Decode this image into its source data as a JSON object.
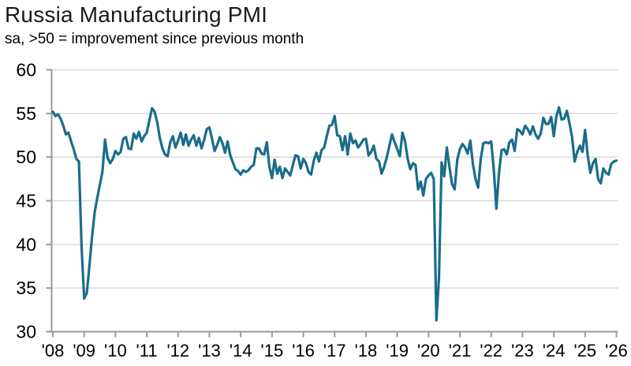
{
  "header": {
    "title": "Russia Manufacturing PMI",
    "subtitle": "sa, >50 = improvement since previous month"
  },
  "colors": {
    "line": "#1A6D8A",
    "grid": "#d9d9d9",
    "axis": "#999999",
    "tick_text": "#000000",
    "title_text": "#1a1a1a",
    "background": "#ffffff"
  },
  "chart_data": {
    "type": "line",
    "title": "Russia Manufacturing PMI",
    "subtitle": "sa, >50 = improvement since previous month",
    "xlabel": "",
    "ylabel": "",
    "ylim": [
      30,
      60
    ],
    "y_ticks": [
      30,
      35,
      40,
      45,
      50,
      55,
      60
    ],
    "x_tick_labels": [
      "'08",
      "'09",
      "'10",
      "'11",
      "'12",
      "'13",
      "'14",
      "'15",
      "'16",
      "'17",
      "'18",
      "'19",
      "'20",
      "'21",
      "'22",
      "'23",
      "'24",
      "'25",
      "'26"
    ],
    "frequency": "monthly",
    "period_start": "Jan 2008",
    "period_end": "Jan 2026",
    "grid": "horizontal-only",
    "legend": "none",
    "series": [
      {
        "name": "Russia Manufacturing PMI (sa)",
        "values": [
          55.2,
          54.7,
          54.9,
          54.4,
          53.6,
          52.6,
          52.8,
          51.8,
          50.9,
          49.8,
          49.5,
          39.8,
          33.8,
          34.4,
          37.5,
          40.8,
          43.6,
          45.3,
          46.8,
          48.3,
          52.0,
          49.9,
          49.3,
          49.8,
          50.7,
          50.3,
          50.6,
          52.1,
          52.3,
          51.0,
          50.9,
          52.7,
          52.1,
          52.9,
          51.8,
          52.4,
          52.8,
          54.2,
          55.6,
          55.2,
          54.0,
          52.2,
          51.0,
          50.3,
          50.1,
          51.7,
          52.4,
          51.1,
          51.9,
          52.8,
          51.4,
          52.6,
          51.3,
          52.0,
          52.5,
          51.3,
          52.2,
          51.0,
          52.0,
          53.2,
          53.4,
          52.1,
          50.7,
          51.4,
          52.3,
          51.6,
          50.5,
          51.8,
          50.2,
          49.4,
          48.6,
          48.4,
          48.0,
          48.5,
          48.3,
          48.5,
          48.9,
          49.1,
          51.0,
          51.0,
          50.4,
          50.3,
          51.7,
          48.9,
          47.6,
          49.7,
          48.1,
          48.9,
          47.6,
          48.7,
          48.3,
          47.9,
          49.1,
          50.2,
          50.1,
          48.7,
          49.8,
          49.3,
          48.3,
          48.0,
          49.6,
          50.5,
          49.5,
          50.8,
          51.1,
          52.4,
          53.6,
          53.7,
          54.7,
          52.5,
          52.4,
          50.8,
          52.4,
          50.3,
          52.7,
          51.6,
          51.9,
          51.1,
          51.5,
          52.0,
          52.1,
          50.2,
          50.6,
          51.3,
          49.8,
          49.5,
          48.1,
          48.9,
          50.0,
          51.3,
          52.6,
          51.7,
          50.9,
          50.1,
          52.8,
          51.8,
          49.8,
          48.6,
          49.3,
          49.1,
          46.3,
          47.2,
          45.6,
          47.5,
          47.9,
          48.2,
          47.5,
          31.3,
          36.2,
          49.4,
          47.8,
          51.1,
          48.9,
          46.9,
          46.3,
          49.7,
          50.9,
          51.5,
          51.1,
          50.4,
          51.9,
          49.2,
          47.5,
          46.5,
          49.8,
          51.6,
          51.7,
          51.6,
          51.8,
          48.6,
          44.1,
          48.2,
          50.8,
          50.9,
          50.3,
          51.7,
          52.0,
          50.7,
          53.2,
          53.0,
          52.6,
          53.6,
          53.2,
          52.6,
          53.5,
          52.6,
          52.1,
          52.7,
          54.5,
          53.8,
          53.8,
          54.6,
          52.4,
          54.7,
          55.7,
          54.3,
          54.4,
          55.3,
          53.9,
          52.3,
          49.5,
          50.6,
          51.3,
          50.6,
          53.1,
          50.2,
          48.2,
          49.3,
          49.8,
          47.5,
          47.0,
          48.7,
          48.2,
          48.0,
          49.2,
          49.5,
          49.6
        ]
      }
    ]
  }
}
